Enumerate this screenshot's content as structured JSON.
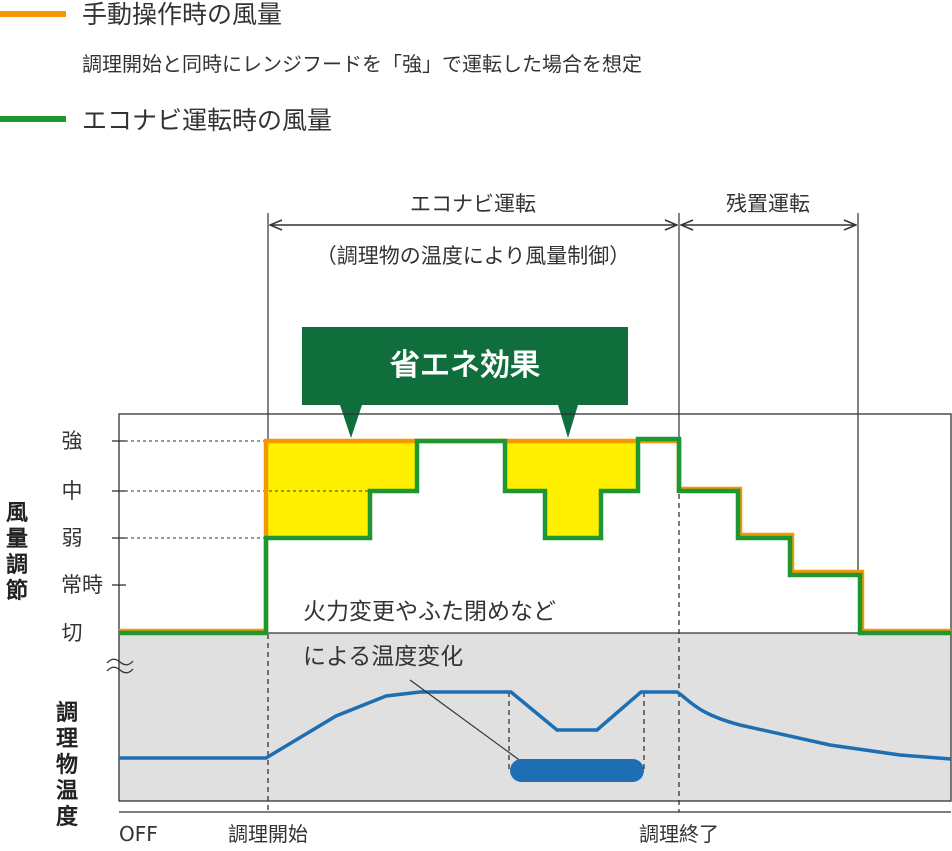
{
  "legend": {
    "manual": {
      "label": "手動操作時の風量",
      "note": "調理開始と同時にレンジフードを「強」で運転した場合を想定",
      "color": "#f39800"
    },
    "econavi": {
      "label": "エコナビ運転時の風量",
      "color": "#1e9632"
    }
  },
  "phases": {
    "econavi_label": "エコナビ運転",
    "econavi_sub": "（調理物の温度により風量制御）",
    "residual_label": "残置運転"
  },
  "badge": {
    "label": "省エネ効果",
    "color": "#0f6e3c"
  },
  "levels": [
    "強",
    "中",
    "弱",
    "常時",
    "切"
  ],
  "y_axis_top": [
    "風",
    "量",
    "調",
    "節"
  ],
  "y_axis_bottom": [
    "調",
    "理",
    "物",
    "温",
    "度"
  ],
  "annotation": {
    "line1": "火力変更やふた閉めなど",
    "line2": "による温度変化"
  },
  "x_axis": {
    "off": "OFF",
    "start": "調理開始",
    "end": "調理終了"
  },
  "colors": {
    "savings_fill": "#fff000",
    "temperature_line": "#1e6eb4",
    "bottom_panel": "#e0e0e0"
  }
}
